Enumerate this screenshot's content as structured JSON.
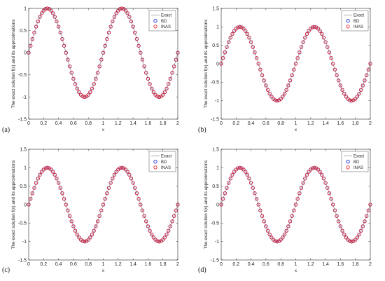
{
  "chart_data": [
    {
      "type": "line",
      "panel_label": "(a)",
      "xlabel": "x",
      "ylabel": "The exact solution f(x) and its approximations",
      "xlim": [
        0,
        2
      ],
      "ylim": [
        -1.5,
        1
      ],
      "xticks": [
        "0",
        "0.2",
        "0.4",
        "0.6",
        "0.8",
        "1",
        "1.2",
        "1.4",
        "1.6",
        "1.8",
        "2"
      ],
      "yticks": [
        "-1.5",
        "-1",
        "-0.5",
        "0",
        "0.5",
        "1"
      ],
      "legend_position": "top-right",
      "function": "sin(2*pi*x)",
      "x_range": [
        0,
        2
      ],
      "marker_count": 81,
      "series": [
        {
          "name": "Exact",
          "style": "line",
          "color": "#9a9a9a"
        },
        {
          "name": "BD",
          "style": "circle-markers",
          "color": "#1f2fd8"
        },
        {
          "name": "INAS",
          "style": "circle-markers",
          "color": "#e8262a"
        }
      ]
    },
    {
      "type": "line",
      "panel_label": "(b)",
      "xlabel": "x",
      "ylabel": "The exact solution f(x) and its approximations",
      "xlim": [
        0,
        2
      ],
      "ylim": [
        -1.5,
        1.5
      ],
      "xticks": [
        "0",
        "0.2",
        "0.4",
        "0.6",
        "0.8",
        "1",
        "1.2",
        "1.4",
        "1.6",
        "1.8",
        "2"
      ],
      "yticks": [
        "-1.5",
        "-1",
        "-0.5",
        "0",
        "0.5",
        "1",
        "1.5"
      ],
      "legend_position": "top-right",
      "function": "sin(2*pi*x)",
      "x_range": [
        0,
        2
      ],
      "marker_count": 81,
      "series": [
        {
          "name": "Exact",
          "style": "line",
          "color": "#9a9a9a"
        },
        {
          "name": "BD",
          "style": "circle-markers",
          "color": "#1f2fd8"
        },
        {
          "name": "INAS",
          "style": "circle-markers",
          "color": "#e8262a"
        }
      ]
    },
    {
      "type": "line",
      "panel_label": "(c)",
      "xlabel": "x",
      "ylabel": "The exact solution f(x) and its approximations",
      "xlim": [
        0,
        2
      ],
      "ylim": [
        -1.5,
        1.5
      ],
      "xticks": [
        "0",
        "0.2",
        "0.4",
        "0.6",
        "0.8",
        "1",
        "1.2",
        "1.4",
        "1.6",
        "1.8",
        "2"
      ],
      "yticks": [
        "-1.5",
        "-1",
        "-0.5",
        "0",
        "0.5",
        "1",
        "1.5"
      ],
      "legend_position": "top-right",
      "function": "sin(2*pi*x)",
      "x_range": [
        0,
        2
      ],
      "marker_count": 81,
      "series": [
        {
          "name": "Exact",
          "style": "line",
          "color": "#9a9a9a"
        },
        {
          "name": "BD",
          "style": "circle-markers",
          "color": "#1f2fd8"
        },
        {
          "name": "INAS",
          "style": "circle-markers",
          "color": "#e8262a"
        }
      ]
    },
    {
      "type": "line",
      "panel_label": "(d)",
      "xlabel": "x",
      "ylabel": "The exact solution f(x) and its approximations",
      "xlim": [
        0,
        2
      ],
      "ylim": [
        -1.5,
        1.5
      ],
      "xticks": [
        "0",
        "0.2",
        "0.4",
        "0.6",
        "0.8",
        "1",
        "1.2",
        "1.4",
        "1.6",
        "1.8",
        "2"
      ],
      "yticks": [
        "-1.5",
        "-1",
        "-0.5",
        "0",
        "0.5",
        "1",
        "1.5"
      ],
      "legend_position": "top-right",
      "function": "sin(2*pi*x)",
      "x_range": [
        0,
        2
      ],
      "marker_count": 81,
      "series": [
        {
          "name": "Exact",
          "style": "line",
          "color": "#9a9a9a"
        },
        {
          "name": "BD",
          "style": "circle-markers",
          "color": "#1f2fd8"
        },
        {
          "name": "INAS",
          "style": "circle-markers",
          "color": "#e8262a"
        }
      ]
    }
  ]
}
